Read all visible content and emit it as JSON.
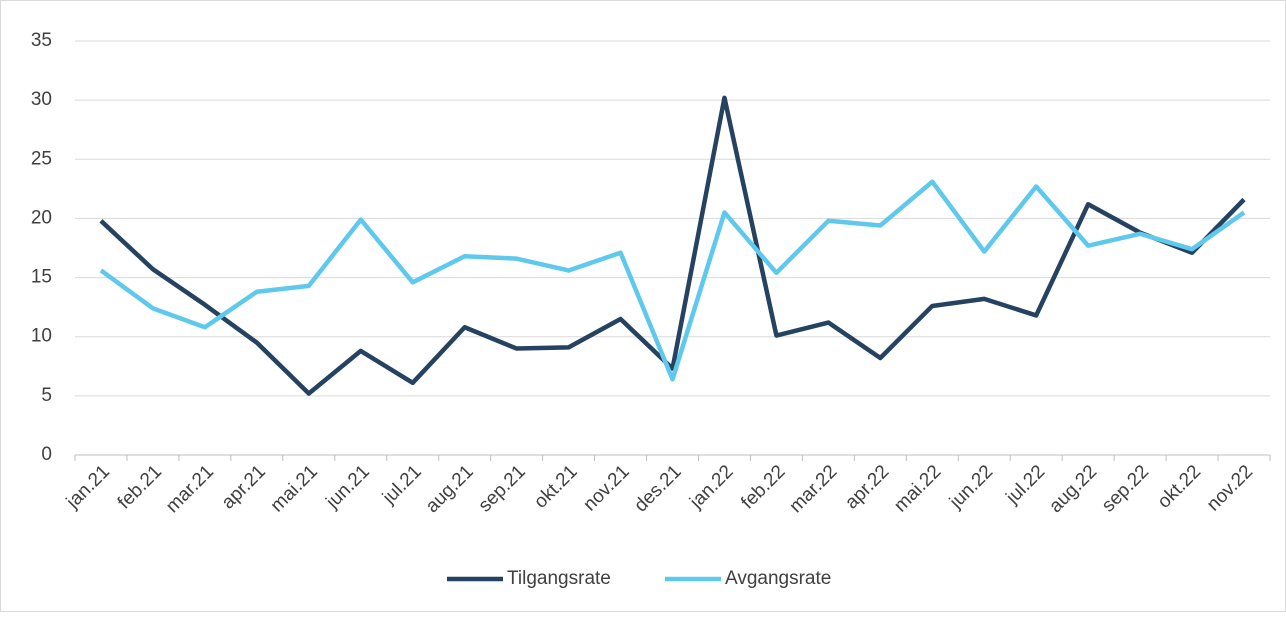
{
  "chart_data": {
    "type": "line",
    "categories": [
      "jan.21",
      "feb.21",
      "mar.21",
      "apr.21",
      "mai.21",
      "jun.21",
      "jul.21",
      "aug.21",
      "sep.21",
      "okt.21",
      "nov.21",
      "des.21",
      "jan.22",
      "feb.22",
      "mar.22",
      "apr.22",
      "mai.22",
      "jun.22",
      "jul.22",
      "aug.22",
      "sep.22",
      "okt.22",
      "nov.22"
    ],
    "series": [
      {
        "name": "Tilgangsrate",
        "color": "#254261",
        "values": [
          19.8,
          15.7,
          12.7,
          9.5,
          5.2,
          8.8,
          6.1,
          10.8,
          9.0,
          9.1,
          11.5,
          7.3,
          30.2,
          10.1,
          11.2,
          8.2,
          12.6,
          13.2,
          11.8,
          21.2,
          18.8,
          17.1,
          21.6
        ]
      },
      {
        "name": "Avgangsrate",
        "color": "#5ec9ec",
        "values": [
          15.6,
          12.4,
          10.8,
          13.8,
          14.3,
          19.9,
          14.6,
          16.8,
          16.6,
          15.6,
          17.1,
          6.4,
          20.5,
          15.4,
          19.8,
          19.4,
          23.1,
          17.2,
          22.7,
          17.7,
          18.7,
          17.4,
          20.5
        ]
      }
    ],
    "ylim": [
      0,
      35
    ],
    "yticks": [
      0,
      5,
      10,
      15,
      20,
      25,
      30,
      35
    ],
    "grid": true,
    "legend": "bottom"
  }
}
